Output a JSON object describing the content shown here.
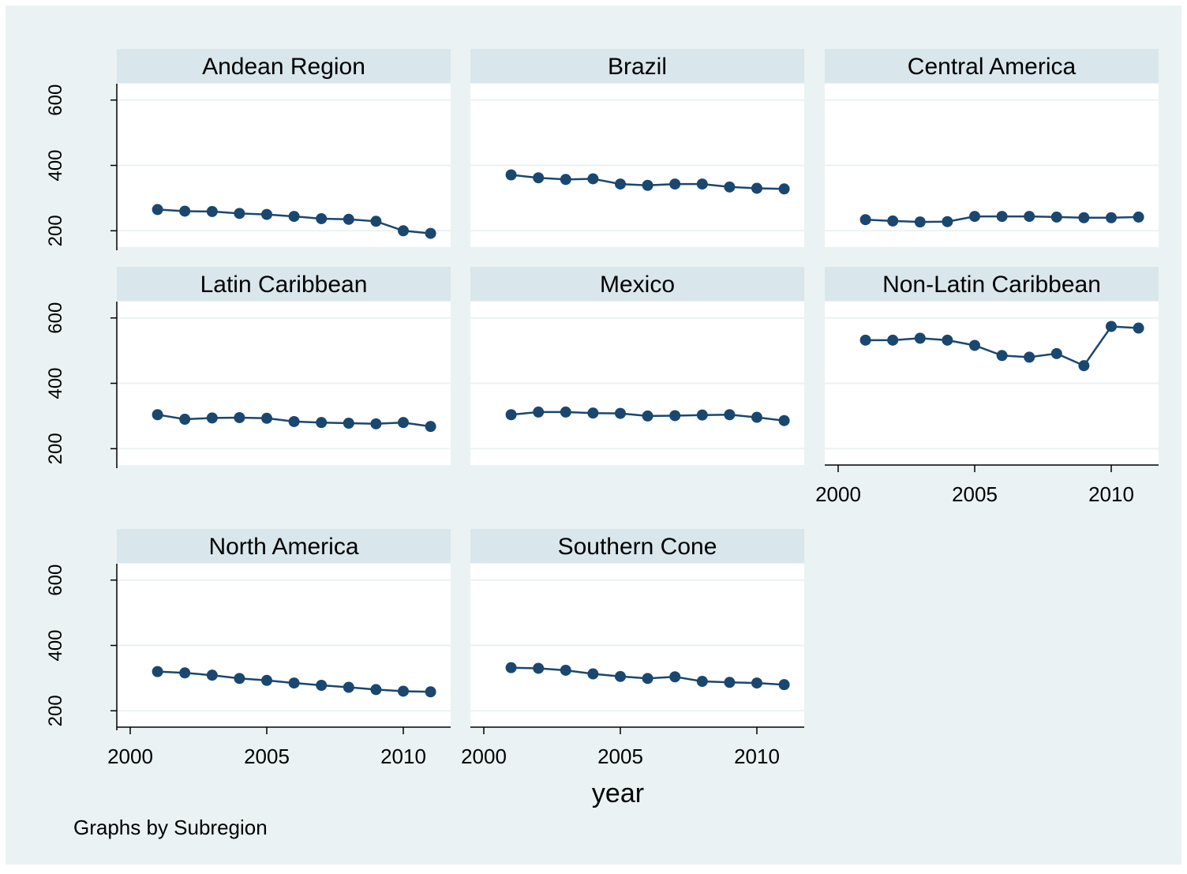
{
  "chart_data": {
    "type": "line",
    "layout": "small-multiples",
    "xlabel": "year",
    "note": "Graphs by Subregion",
    "xlim": [
      2000,
      2011
    ],
    "ylim": [
      150,
      650
    ],
    "xticks": [
      2000,
      2005,
      2010
    ],
    "yticks": [
      200,
      400,
      600
    ],
    "grid": true,
    "x": [
      2001,
      2002,
      2003,
      2004,
      2005,
      2006,
      2007,
      2008,
      2009,
      2010,
      2011
    ],
    "colors": {
      "background": "#eaf2f3",
      "plot_background": "#ffffff",
      "strip": "#d9e6ec",
      "series": "#1a476f",
      "grid": "#eaf2f3"
    },
    "panels": [
      {
        "title": "Andean Region",
        "values": [
          265,
          260,
          259,
          253,
          250,
          244,
          237,
          235,
          229,
          200,
          192
        ]
      },
      {
        "title": "Brazil",
        "values": [
          371,
          362,
          357,
          359,
          343,
          339,
          343,
          343,
          334,
          330,
          328
        ]
      },
      {
        "title": "Central America",
        "values": [
          234,
          230,
          227,
          228,
          244,
          244,
          244,
          242,
          240,
          240,
          242
        ]
      },
      {
        "title": "Latin Caribbean",
        "values": [
          304,
          290,
          294,
          295,
          293,
          283,
          280,
          278,
          276,
          280,
          268
        ]
      },
      {
        "title": "Mexico",
        "values": [
          304,
          312,
          312,
          309,
          308,
          300,
          301,
          303,
          304,
          296,
          286
        ]
      },
      {
        "title": "Non-Latin Caribbean",
        "values": [
          532,
          532,
          538,
          532,
          516,
          485,
          480,
          491,
          454,
          574,
          569
        ]
      },
      {
        "title": "North America",
        "values": [
          320,
          316,
          309,
          299,
          293,
          285,
          278,
          272,
          265,
          260,
          258
        ]
      },
      {
        "title": "Southern Cone",
        "values": [
          332,
          330,
          324,
          313,
          305,
          299,
          304,
          290,
          287,
          285,
          280
        ]
      }
    ]
  }
}
